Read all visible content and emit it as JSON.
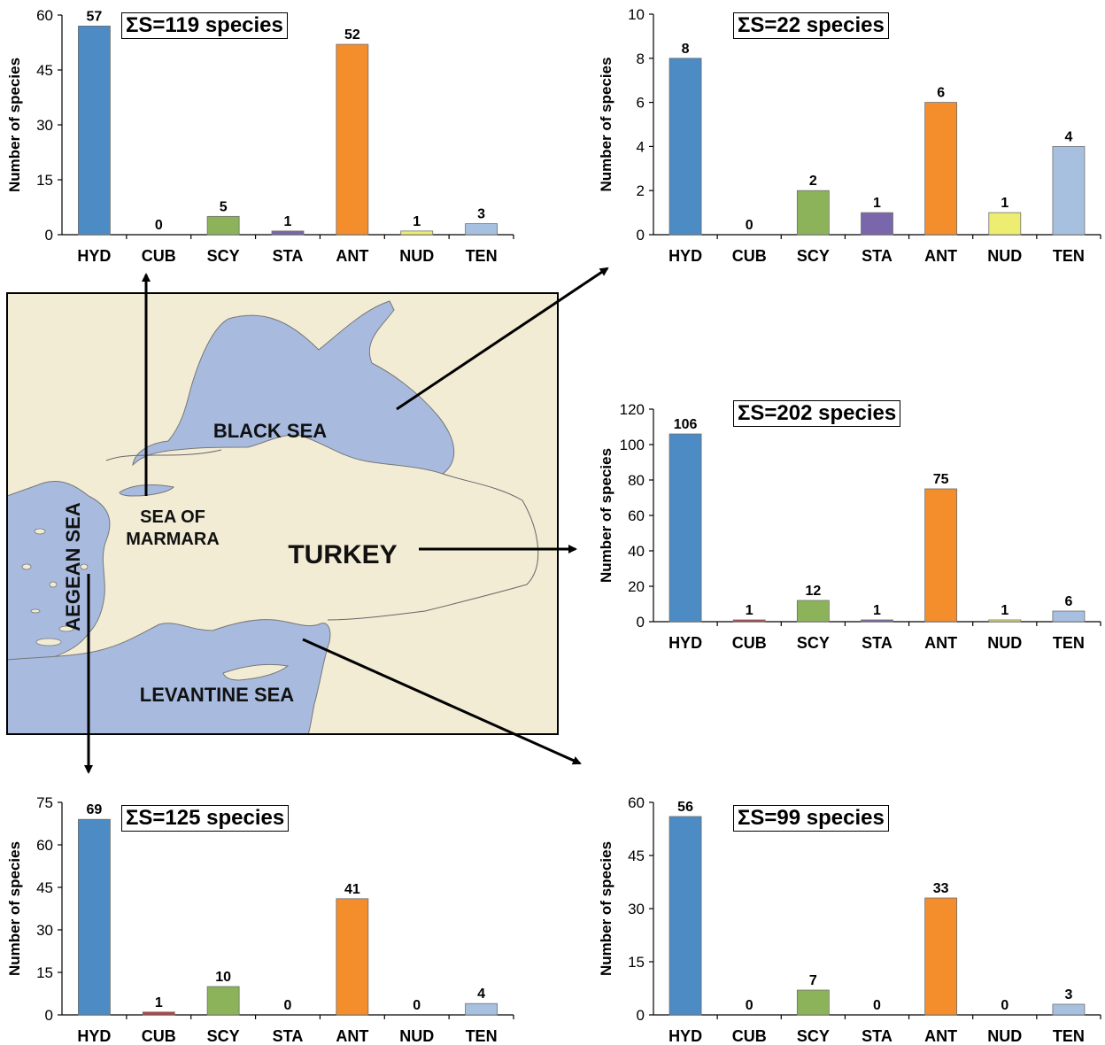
{
  "map": {
    "labels": {
      "black_sea": "BLACK SEA",
      "sea_of_marmara_1": "SEA OF",
      "sea_of_marmara_2": "MARMARA",
      "turkey": "TURKEY",
      "aegean_sea": "AEGEAN SEA",
      "levantine_sea": "LEVANTINE SEA"
    },
    "colors": {
      "sea": "#a8bbdf",
      "land": "#f2ecd5",
      "border": "#555555"
    }
  },
  "colors": {
    "HYD": "#4d8bc4",
    "CUB": "#b84040",
    "SCY": "#8db35a",
    "STA": "#7a66aa",
    "ANT": "#f48d2c",
    "NUD": "#eded72",
    "TEN": "#a8c0e0"
  },
  "chart_data": [
    {
      "type": "bar",
      "region": "Sea of Marmara",
      "total_label": "ΣS=119 species",
      "categories": [
        "HYD",
        "CUB",
        "SCY",
        "STA",
        "ANT",
        "NUD",
        "TEN"
      ],
      "values": [
        57,
        0,
        5,
        1,
        52,
        1,
        3
      ],
      "labels": [
        "57",
        "0",
        "5",
        "1",
        "52",
        "1",
        "3"
      ],
      "ylabel": "Number of species",
      "ylim": [
        0,
        60
      ],
      "yticks": [
        "0",
        "15",
        "30",
        "45",
        "60"
      ]
    },
    {
      "type": "bar",
      "region": "Black Sea",
      "total_label": "ΣS=22 species",
      "categories": [
        "HYD",
        "CUB",
        "SCY",
        "STA",
        "ANT",
        "NUD",
        "TEN"
      ],
      "values": [
        8,
        0,
        2,
        1,
        6,
        1,
        4
      ],
      "labels": [
        "8",
        "0",
        "2",
        "1",
        "6",
        "1",
        "4"
      ],
      "ylabel": "Number of species",
      "ylim": [
        0,
        10
      ],
      "yticks": [
        "0",
        "2",
        "4",
        "6",
        "8",
        "10"
      ]
    },
    {
      "type": "bar",
      "region": "Turkey",
      "total_label": "ΣS=202 species",
      "categories": [
        "HYD",
        "CUB",
        "SCY",
        "STA",
        "ANT",
        "NUD",
        "TEN"
      ],
      "values": [
        106,
        1,
        12,
        1,
        75,
        1,
        6
      ],
      "labels": [
        "106",
        "1",
        "12",
        "1",
        "75",
        "1",
        "6"
      ],
      "ylabel": "Number of species",
      "ylim": [
        0,
        120
      ],
      "yticks": [
        "0",
        "20",
        "40",
        "60",
        "80",
        "100",
        "120"
      ]
    },
    {
      "type": "bar",
      "region": "Aegean Sea",
      "total_label": "ΣS=125 species",
      "categories": [
        "HYD",
        "CUB",
        "SCY",
        "STA",
        "ANT",
        "NUD",
        "TEN"
      ],
      "values": [
        69,
        1,
        10,
        0,
        41,
        0,
        4
      ],
      "labels": [
        "69",
        "1",
        "10",
        "0",
        "41",
        "0",
        "4"
      ],
      "ylabel": "Number of species",
      "ylim": [
        0,
        75
      ],
      "yticks": [
        "0",
        "15",
        "30",
        "45",
        "60",
        "75"
      ]
    },
    {
      "type": "bar",
      "region": "Levantine Sea",
      "total_label": "ΣS=99 species",
      "categories": [
        "HYD",
        "CUB",
        "SCY",
        "STA",
        "ANT",
        "NUD",
        "TEN"
      ],
      "values": [
        56,
        0,
        7,
        0,
        33,
        0,
        3
      ],
      "labels": [
        "56",
        "0",
        "7",
        "0",
        "33",
        "0",
        "3"
      ],
      "ylabel": "Number of species",
      "ylim": [
        0,
        60
      ],
      "yticks": [
        "0",
        "15",
        "30",
        "45",
        "60"
      ]
    }
  ]
}
